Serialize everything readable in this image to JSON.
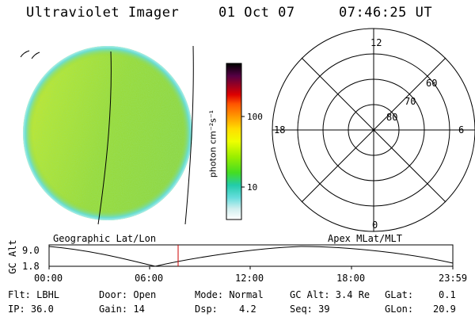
{
  "header": {
    "instrument": "Ultraviolet Imager",
    "date": "01 Oct 07",
    "time": "07:46:25 UT"
  },
  "colorbar": {
    "unit_label": "photon cm⁻²s⁻¹",
    "ticks": [
      "100",
      "10"
    ],
    "colors": [
      "#000000",
      "#2a0a3a",
      "#4a0a50",
      "#6a0020",
      "#9a0000",
      "#cc0000",
      "#ff3300",
      "#ff7700",
      "#ffaa00",
      "#ffdd00",
      "#ffff00",
      "#ccff00",
      "#88ee00",
      "#44dd00",
      "#22cc44",
      "#22ccbb",
      "#66dddd",
      "#aaeeee",
      "#ffffff"
    ]
  },
  "panels": {
    "left_label": "Geographic Lat/Lon",
    "right_label": "Apex MLat/MLT"
  },
  "polar": {
    "mlt_labels": [
      "12",
      "18",
      "6",
      "0"
    ],
    "lat_labels": [
      "60",
      "70",
      "80"
    ]
  },
  "orbit": {
    "axis_label": "GC Alt",
    "y_ticks": [
      "9.0",
      "1.8"
    ],
    "x_ticks": [
      "00:00",
      "06:00",
      "12:00",
      "18:00",
      "23:59"
    ],
    "current_time_color": "#cc0000"
  },
  "status": {
    "flt": "Flt: LBHL",
    "ip": "IP: 36.0",
    "door": "Door: Open",
    "gain": "Gain: 14",
    "mode": "Mode: Normal",
    "dsp_label": "Dsp:",
    "dsp_value": "4.2",
    "gc_alt": "GC Alt: 3.4 Re",
    "seq": "Seq: 39",
    "glat_label": "GLat:",
    "glat_value": "0.1",
    "glon_label": "GLon:",
    "glon_value": "20.9"
  },
  "colors": {
    "earth_base": "#99dd22",
    "earth_light": "#ccee22",
    "earth_limb": "#66dddd"
  }
}
